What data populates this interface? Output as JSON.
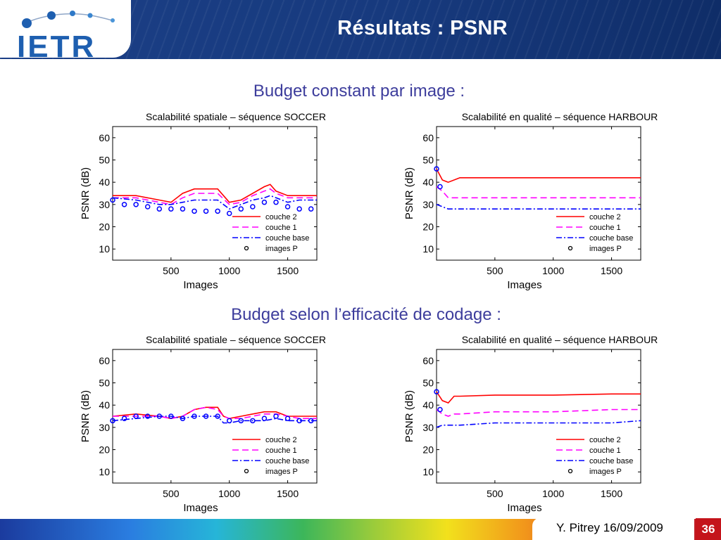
{
  "header": {
    "title": "Résultats : PSNR",
    "logo_text": "IETR"
  },
  "sections": [
    {
      "title": "Budget constant par image :"
    },
    {
      "title": "Budget selon l’efficacité de codage :"
    }
  ],
  "footer": {
    "author_date": "Y. Pitrey 16/09/2009",
    "page_number": "36"
  },
  "colors": {
    "couche2": "#ff0000",
    "couche1": "#ff00ff",
    "base": "#0000ff",
    "header": "#1b3f86",
    "section_title": "#3d3d9c"
  },
  "chart_data": [
    {
      "type": "line",
      "title": "Scalabilité spatiale – séquence SOCCER",
      "xlabel": "Images",
      "ylabel": "PSNR (dB)",
      "xlim": [
        0,
        1750
      ],
      "ylim": [
        5,
        65
      ],
      "xticks": [
        500,
        1000,
        1500
      ],
      "yticks": [
        10,
        20,
        30,
        40,
        50,
        60
      ],
      "legend_placement": "bottom-right",
      "legend": [
        "couche 2",
        "couche 1",
        "couche base",
        "images P"
      ],
      "series": [
        {
          "name": "couche 2",
          "x": [
            0,
            200,
            400,
            500,
            600,
            700,
            800,
            900,
            1000,
            1100,
            1200,
            1300,
            1350,
            1400,
            1500,
            1600,
            1700,
            1750
          ],
          "y": [
            34,
            34,
            32,
            31,
            35,
            37,
            37,
            37,
            31,
            32,
            35,
            38,
            39,
            36,
            34,
            34,
            34,
            34
          ]
        },
        {
          "name": "couche 1",
          "x": [
            0,
            200,
            400,
            500,
            600,
            700,
            800,
            900,
            1000,
            1100,
            1200,
            1300,
            1350,
            1400,
            1500,
            1600,
            1700,
            1750
          ],
          "y": [
            33,
            33,
            31,
            30,
            33,
            35,
            35,
            35,
            30,
            31,
            34,
            36,
            37,
            35,
            33,
            33,
            33,
            33
          ]
        },
        {
          "name": "couche base",
          "x": [
            0,
            200,
            400,
            500,
            600,
            700,
            800,
            900,
            1000,
            1100,
            1200,
            1300,
            1350,
            1400,
            1500,
            1600,
            1700,
            1750
          ],
          "y": [
            33,
            32,
            30,
            30,
            31,
            32,
            32,
            32,
            28,
            30,
            32,
            33,
            34,
            33,
            31,
            32,
            32,
            32
          ]
        }
      ],
      "points_p": {
        "name": "images P",
        "x": [
          0,
          100,
          200,
          300,
          400,
          500,
          600,
          700,
          800,
          900,
          1000,
          1100,
          1200,
          1300,
          1400,
          1500,
          1600,
          1700
        ],
        "y": [
          32,
          30,
          30,
          29,
          28,
          28,
          28,
          27,
          27,
          27,
          26,
          28,
          29,
          31,
          31,
          29,
          28,
          28
        ]
      }
    },
    {
      "type": "line",
      "title": "Scalabilité en qualité – séquence HARBOUR",
      "xlabel": "Images",
      "ylabel": "PSNR (dB)",
      "xlim": [
        0,
        1750
      ],
      "ylim": [
        5,
        65
      ],
      "xticks": [
        500,
        1000,
        1500
      ],
      "yticks": [
        10,
        20,
        30,
        40,
        50,
        60
      ],
      "legend_placement": "bottom-right",
      "legend": [
        "couche 2",
        "couche 1",
        "couche base",
        "images P"
      ],
      "series": [
        {
          "name": "couche 2",
          "x": [
            0,
            50,
            100,
            200,
            500,
            1000,
            1500,
            1750
          ],
          "y": [
            46,
            41,
            40,
            42,
            42,
            42,
            42,
            42
          ]
        },
        {
          "name": "couche 1",
          "x": [
            0,
            50,
            100,
            200,
            500,
            1000,
            1500,
            1750
          ],
          "y": [
            38,
            36,
            33,
            33,
            33,
            33,
            33,
            33
          ]
        },
        {
          "name": "couche base",
          "x": [
            0,
            50,
            100,
            200,
            500,
            1000,
            1500,
            1750
          ],
          "y": [
            30,
            29,
            28,
            28,
            28,
            28,
            28,
            28
          ]
        }
      ],
      "points_p": {
        "name": "images P",
        "x": [
          0,
          30
        ],
        "y": [
          46,
          38
        ]
      }
    },
    {
      "type": "line",
      "title": "Scalabilité spatiale – séquence SOCCER",
      "xlabel": "Images",
      "ylabel": "PSNR (dB)",
      "xlim": [
        0,
        1750
      ],
      "ylim": [
        5,
        65
      ],
      "xticks": [
        500,
        1000,
        1500
      ],
      "yticks": [
        10,
        20,
        30,
        40,
        50,
        60
      ],
      "legend_placement": "bottom-right",
      "legend": [
        "couche 2",
        "couche 1",
        "couche base",
        "images P"
      ],
      "series": [
        {
          "name": "couche 2",
          "x": [
            0,
            200,
            400,
            500,
            600,
            700,
            800,
            900,
            950,
            1000,
            1100,
            1200,
            1300,
            1400,
            1500,
            1600,
            1700,
            1750
          ],
          "y": [
            35,
            36,
            35,
            34,
            35,
            38,
            39,
            39,
            35,
            34,
            35,
            36,
            37,
            37,
            35,
            35,
            35,
            35
          ]
        },
        {
          "name": "couche 1",
          "x": [
            0,
            200,
            400,
            500,
            600,
            700,
            800,
            900,
            950,
            1000,
            1100,
            1200,
            1300,
            1400,
            1500,
            1600,
            1700,
            1750
          ],
          "y": [
            35,
            35,
            35,
            34,
            35,
            38,
            39,
            38,
            35,
            34,
            34,
            35,
            36,
            36,
            35,
            34,
            34,
            34
          ]
        },
        {
          "name": "couche base",
          "x": [
            0,
            200,
            400,
            500,
            600,
            700,
            800,
            900,
            950,
            1000,
            1100,
            1200,
            1300,
            1400,
            1500,
            1600,
            1700,
            1750
          ],
          "y": [
            33,
            34,
            35,
            35,
            34,
            35,
            35,
            35,
            32,
            32,
            33,
            33,
            33,
            34,
            33,
            33,
            33,
            33
          ]
        }
      ],
      "points_p": {
        "name": "images P",
        "x": [
          0,
          100,
          200,
          300,
          400,
          500,
          600,
          700,
          800,
          900,
          1000,
          1100,
          1200,
          1300,
          1400,
          1500,
          1600,
          1700
        ],
        "y": [
          33,
          34,
          35,
          35,
          35,
          35,
          34,
          35,
          35,
          35,
          33,
          33,
          33,
          34,
          35,
          34,
          33,
          33
        ]
      }
    },
    {
      "type": "line",
      "title": "Scalabilité en qualité – séquence HARBOUR",
      "xlabel": "Images",
      "ylabel": "PSNR (dB)",
      "xlim": [
        0,
        1750
      ],
      "ylim": [
        5,
        65
      ],
      "xticks": [
        500,
        1000,
        1500
      ],
      "yticks": [
        10,
        20,
        30,
        40,
        50,
        60
      ],
      "legend_placement": "bottom-right",
      "legend": [
        "couche 2",
        "couche 1",
        "couche base",
        "images P"
      ],
      "series": [
        {
          "name": "couche 2",
          "x": [
            0,
            50,
            100,
            150,
            200,
            500,
            1000,
            1500,
            1750
          ],
          "y": [
            46,
            42,
            41,
            44,
            44,
            44.5,
            44.5,
            45,
            45
          ]
        },
        {
          "name": "couche 1",
          "x": [
            0,
            50,
            100,
            150,
            200,
            500,
            1000,
            1500,
            1750
          ],
          "y": [
            38,
            36,
            35,
            36,
            36,
            37,
            37,
            38,
            38
          ]
        },
        {
          "name": "couche base",
          "x": [
            0,
            50,
            100,
            150,
            200,
            500,
            1000,
            1500,
            1750
          ],
          "y": [
            30,
            31,
            31,
            31,
            31,
            32,
            32,
            32,
            33
          ]
        }
      ],
      "points_p": {
        "name": "images P",
        "x": [
          0,
          30
        ],
        "y": [
          46,
          38
        ]
      }
    }
  ]
}
